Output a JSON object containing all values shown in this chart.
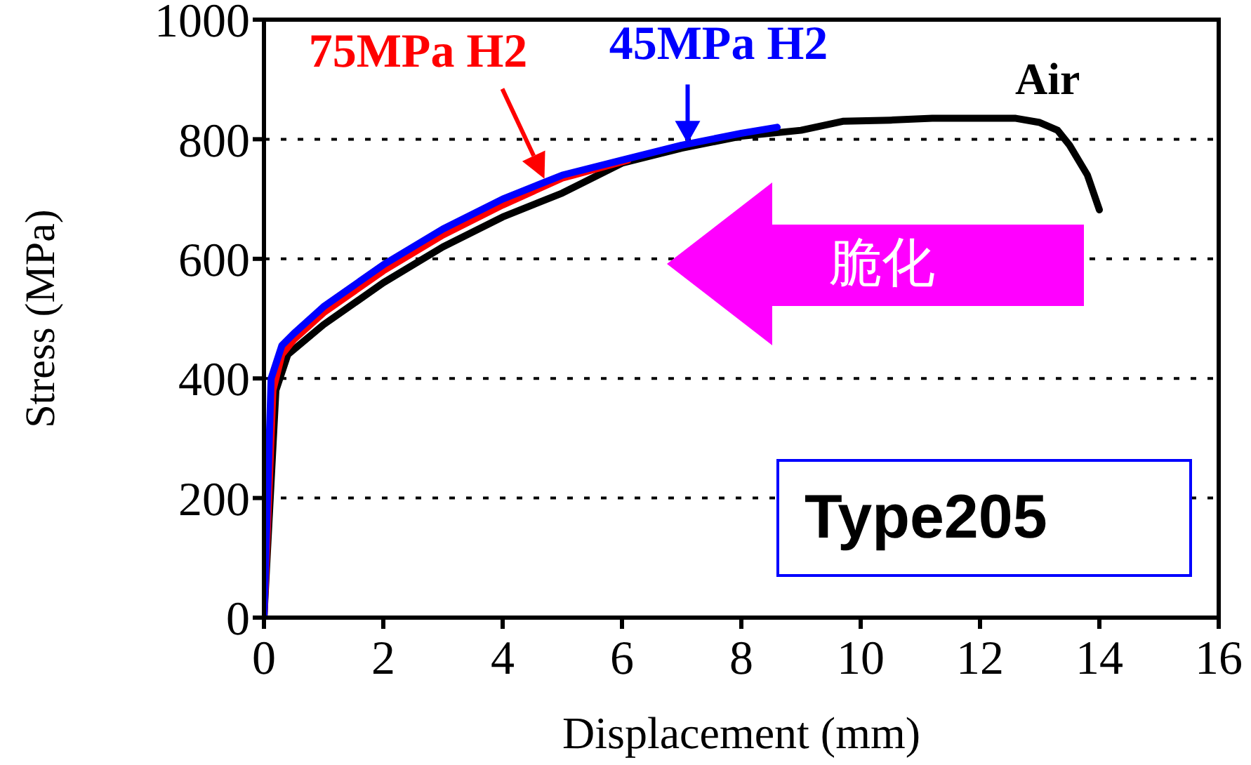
{
  "chart_data": {
    "type": "line",
    "xlabel": "Displacement (mm)",
    "ylabel": "Stress (MPa)",
    "xlim": [
      0,
      16
    ],
    "xticks": [
      0,
      2,
      4,
      6,
      8,
      10,
      12,
      14,
      16
    ],
    "ylim": [
      0,
      1000
    ],
    "yticks": [
      0,
      200,
      400,
      600,
      800,
      1000
    ],
    "grid": "y",
    "legend": false,
    "marker": "none",
    "line_style": "solid",
    "series": [
      {
        "color": "#000000",
        "x": [
          0,
          0.2,
          0.4,
          1,
          2,
          3,
          4,
          5,
          5.5,
          6,
          7,
          8,
          9,
          9.7,
          10.5,
          11.2,
          12,
          12.6,
          13,
          13.3,
          13.5,
          13.8,
          14
        ],
        "values": [
          0,
          380,
          440,
          490,
          560,
          620,
          670,
          710,
          735,
          760,
          785,
          805,
          815,
          830,
          832,
          835,
          835,
          835,
          828,
          815,
          790,
          740,
          682
        ]
      },
      {
        "color": "#ff0000",
        "x": [
          0,
          0.15,
          0.3,
          0.5,
          1,
          2,
          3,
          4,
          5,
          6.1
        ],
        "values": [
          0,
          380,
          440,
          465,
          510,
          580,
          640,
          690,
          735,
          765
        ]
      },
      {
        "color": "#0000ff",
        "x": [
          0,
          0.12,
          0.3,
          0.5,
          1,
          2,
          3,
          4,
          5,
          6,
          7,
          8,
          8.6
        ],
        "values": [
          0,
          400,
          455,
          475,
          520,
          590,
          650,
          700,
          740,
          765,
          790,
          810,
          820
        ]
      }
    ],
    "annotations": [
      {
        "text": "75MPa H2",
        "x": 4.7,
        "y": 734
      },
      {
        "text": "45MPa H2",
        "x": 7.1,
        "y": 793
      },
      "Air",
      "脆化",
      "Type205"
    ]
  }
}
